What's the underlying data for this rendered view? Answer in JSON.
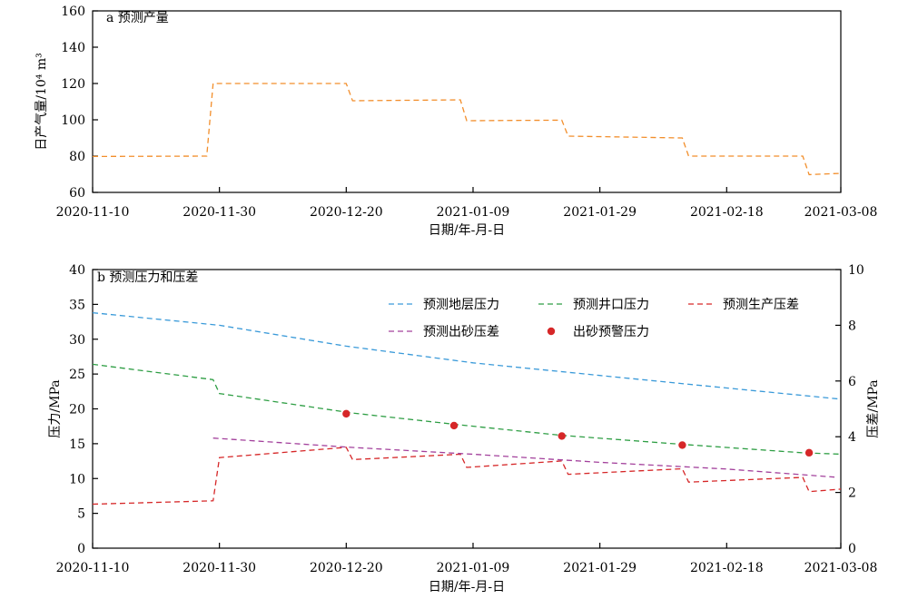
{
  "chart_data": [
    {
      "type": "line",
      "title": "a 预测产量",
      "xlabel": "日期/年-月-日",
      "ylabel": "日产气量/10⁴ m³",
      "ylim": [
        60,
        160
      ],
      "yticks": [
        60,
        80,
        100,
        120,
        140,
        160
      ],
      "xlim": [
        "2020-11-10",
        "2021-03-08"
      ],
      "xticks": [
        "2020-11-10",
        "2020-11-30",
        "2020-12-20",
        "2021-01-09",
        "2021-01-29",
        "2021-02-18",
        "2021-03-08"
      ],
      "grid": false,
      "series": [
        {
          "name": "",
          "color": "#F28E2B",
          "style": "dashed",
          "points": [
            [
              "2020-11-10",
              79.8
            ],
            [
              "2020-11-28",
              80.0
            ],
            [
              "2020-11-29",
              120.0
            ],
            [
              "2020-12-20",
              120.0
            ],
            [
              "2020-12-21",
              110.5
            ],
            [
              "2021-01-07",
              111.0
            ],
            [
              "2021-01-08",
              99.5
            ],
            [
              "2021-01-23",
              99.8
            ],
            [
              "2021-01-24",
              91.0
            ],
            [
              "2021-02-11",
              90.0
            ],
            [
              "2021-02-12",
              80.0
            ],
            [
              "2021-03-02",
              80.0
            ],
            [
              "2021-03-03",
              69.8
            ],
            [
              "2021-03-08",
              70.5
            ]
          ]
        }
      ]
    },
    {
      "type": "line",
      "title": "b 预测压力和压差",
      "xlabel": "日期/年-月-日",
      "ylabel": "压力/MPa",
      "y2label": "压差/MPa",
      "ylim": [
        0,
        40
      ],
      "yticks": [
        0,
        5,
        10,
        15,
        20,
        25,
        30,
        35,
        40
      ],
      "y2lim": [
        0,
        10
      ],
      "y2ticks": [
        0,
        2,
        4,
        6,
        8,
        10
      ],
      "xlim": [
        "2020-11-10",
        "2021-03-08"
      ],
      "xticks": [
        "2020-11-10",
        "2020-11-30",
        "2020-12-20",
        "2021-01-09",
        "2021-01-29",
        "2021-02-18",
        "2021-03-08"
      ],
      "grid": false,
      "legend_position": "top-right",
      "series": [
        {
          "name": "预测地层压力",
          "axis": "left",
          "color": "#3A9AD9",
          "style": "dashed",
          "marker": "line",
          "points": [
            [
              "2020-11-10",
              33.8
            ],
            [
              "2020-11-30",
              32.0
            ],
            [
              "2020-12-20",
              29.0
            ],
            [
              "2021-01-09",
              26.6
            ],
            [
              "2021-01-29",
              24.8
            ],
            [
              "2021-02-18",
              23.0
            ],
            [
              "2021-03-08",
              21.4
            ]
          ]
        },
        {
          "name": "预测井口压力",
          "axis": "left",
          "color": "#2E9E44",
          "style": "dashed",
          "marker": "line",
          "points": [
            [
              "2020-11-10",
              26.4
            ],
            [
              "2020-11-29",
              24.2
            ],
            [
              "2020-11-30",
              22.2
            ],
            [
              "2020-12-21",
              19.4
            ],
            [
              "2021-01-07",
              17.7
            ],
            [
              "2021-01-23",
              16.2
            ],
            [
              "2021-02-11",
              14.9
            ],
            [
              "2021-03-02",
              13.7
            ],
            [
              "2021-03-08",
              13.5
            ]
          ]
        },
        {
          "name": "预测生产压差",
          "axis": "right",
          "color": "#D62728",
          "style": "dashed",
          "marker": "line",
          "points": [
            [
              "2020-11-10",
              1.58
            ],
            [
              "2020-11-29",
              1.7
            ],
            [
              "2020-11-30",
              3.25
            ],
            [
              "2020-12-20",
              3.62
            ],
            [
              "2020-12-21",
              3.18
            ],
            [
              "2021-01-07",
              3.37
            ],
            [
              "2021-01-08",
              2.9
            ],
            [
              "2021-01-23",
              3.13
            ],
            [
              "2021-01-24",
              2.65
            ],
            [
              "2021-02-11",
              2.85
            ],
            [
              "2021-02-12",
              2.37
            ],
            [
              "2021-03-02",
              2.54
            ],
            [
              "2021-03-03",
              2.03
            ],
            [
              "2021-03-08",
              2.12
            ]
          ]
        },
        {
          "name": "预测出砂压差",
          "axis": "right",
          "color": "#A3419C",
          "style": "dashed",
          "marker": "line",
          "points": [
            [
              "2020-11-29",
              3.95
            ],
            [
              "2020-12-20",
              3.63
            ],
            [
              "2021-01-09",
              3.37
            ],
            [
              "2021-01-29",
              3.08
            ],
            [
              "2021-02-18",
              2.84
            ],
            [
              "2021-03-07",
              2.55
            ]
          ]
        },
        {
          "name": "出砂预警压力",
          "axis": "left",
          "color": "#D62728",
          "style": "none",
          "marker": "dot",
          "points": [
            [
              "2020-12-20",
              19.3
            ],
            [
              "2021-01-06",
              17.6
            ],
            [
              "2021-01-23",
              16.1
            ],
            [
              "2021-02-11",
              14.8
            ],
            [
              "2021-03-03",
              13.7
            ]
          ]
        }
      ]
    }
  ]
}
